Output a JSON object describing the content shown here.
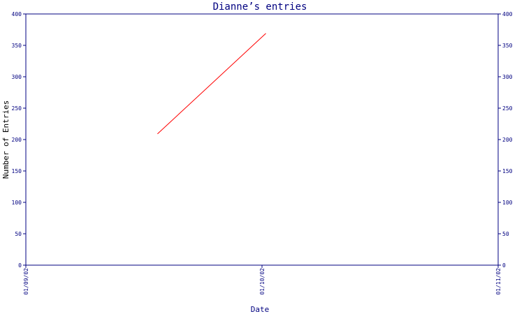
{
  "chart_data": {
    "type": "line",
    "title": "Dianne’s entries",
    "xlabel": "Date",
    "ylabel": "Number of Entries",
    "x_ticks": [
      "01/09/02",
      "01/10/02",
      "01/11/02"
    ],
    "xlim": [
      "2002-09-01",
      "2002-11-01"
    ],
    "ylim": [
      0,
      400
    ],
    "y_ticks": [
      0,
      50,
      100,
      150,
      200,
      250,
      300,
      350,
      400
    ],
    "y_axis_right": true,
    "grid": false,
    "series": [
      {
        "x": [
          "2002-09-18",
          "2002-10-02"
        ],
        "y": [
          209,
          369
        ]
      }
    ],
    "colors": {
      "axis": "#000080",
      "line": "#ff0000",
      "background": "#ffffff"
    }
  }
}
